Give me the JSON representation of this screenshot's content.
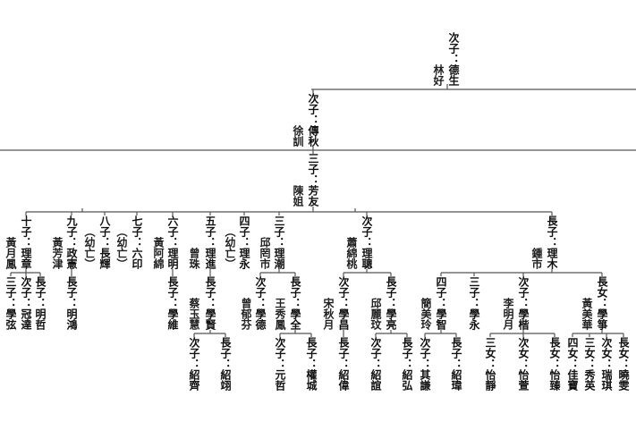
{
  "g1": {
    "label": "次子：德生",
    "spouse": "林好"
  },
  "g2": {
    "label": "次子：傳秋",
    "spouse": "徐訓"
  },
  "g3": {
    "label": "三子：芳友",
    "spouse": "陳姐"
  },
  "g4": [
    {
      "label": "十子：理章",
      "spouse": "黃月鳳",
      "children": [
        {
          "label": "三子：學弦"
        },
        {
          "label": "次子：冠達"
        },
        {
          "label": "長子：明哲"
        }
      ]
    },
    {
      "label": "九子：政憲",
      "spouse": "黃芳津",
      "children": [
        {
          "label": "長子：明鴻"
        }
      ]
    },
    {
      "label": "八子：長輝",
      "note": "（幼亡）"
    },
    {
      "label": "七子：六印",
      "note": "（幼亡）"
    },
    {
      "label": "六子：理明",
      "spouse": "黃阿綿",
      "children": [
        {
          "label": "長子：學維"
        }
      ]
    },
    {
      "label": "五子：理進",
      "spouse": "曾珠",
      "children": [
        {
          "label": "長子：學賢",
          "spouse": "蔡玉慧",
          "children": [
            {
              "label": "次子：紹齊"
            },
            {
              "label": "長子：紹翊"
            }
          ]
        }
      ]
    },
    {
      "label": "四子：理永",
      "note": "（幼亡）"
    },
    {
      "label": "三子：理潮",
      "spouse": "邱罔市",
      "children": [
        {
          "label": "次子：學德",
          "spouse": "曾郁芬"
        },
        {
          "label": "長子：學全",
          "spouse": "王秀鳳",
          "children": [
            {
              "label": "次子：元哲"
            },
            {
              "label": "長子：權城"
            }
          ]
        }
      ]
    },
    {
      "label": "次子：理聰",
      "spouse": "蕭綿桃",
      "children": [
        {
          "label": "次子：學昌",
          "spouse": "宋秋月",
          "children": [
            {
              "label": "長子：紹偉"
            }
          ]
        },
        {
          "label": "長子：學亮",
          "spouse": "邱麗玟",
          "children": [
            {
              "label": "次子：紹誼"
            },
            {
              "label": "長子：紹弘"
            }
          ]
        }
      ]
    },
    {
      "label": "長子：理木",
      "spouse": "鍾市",
      "children": [
        {
          "label": "四子：學智",
          "spouse": "簡美玲",
          "children": [
            {
              "label": "次子：其謙"
            },
            {
              "label": "長子：紹瑋"
            }
          ]
        },
        {
          "label": "三子：學永"
        },
        {
          "label": "次子：學楷",
          "spouse": "李明月",
          "children": [
            {
              "label": "三女：怡靜"
            },
            {
              "label": "次女：怡萱"
            },
            {
              "label": "長女：怡臻"
            }
          ]
        },
        {
          "label": "長女：學箏",
          "spouse": "黃美華",
          "children": [
            {
              "label": "四女：佳寶"
            },
            {
              "label": "三女：秀英"
            },
            {
              "label": "次女：瑞琪"
            },
            {
              "label": "長女：曉雯"
            }
          ]
        }
      ]
    }
  ]
}
